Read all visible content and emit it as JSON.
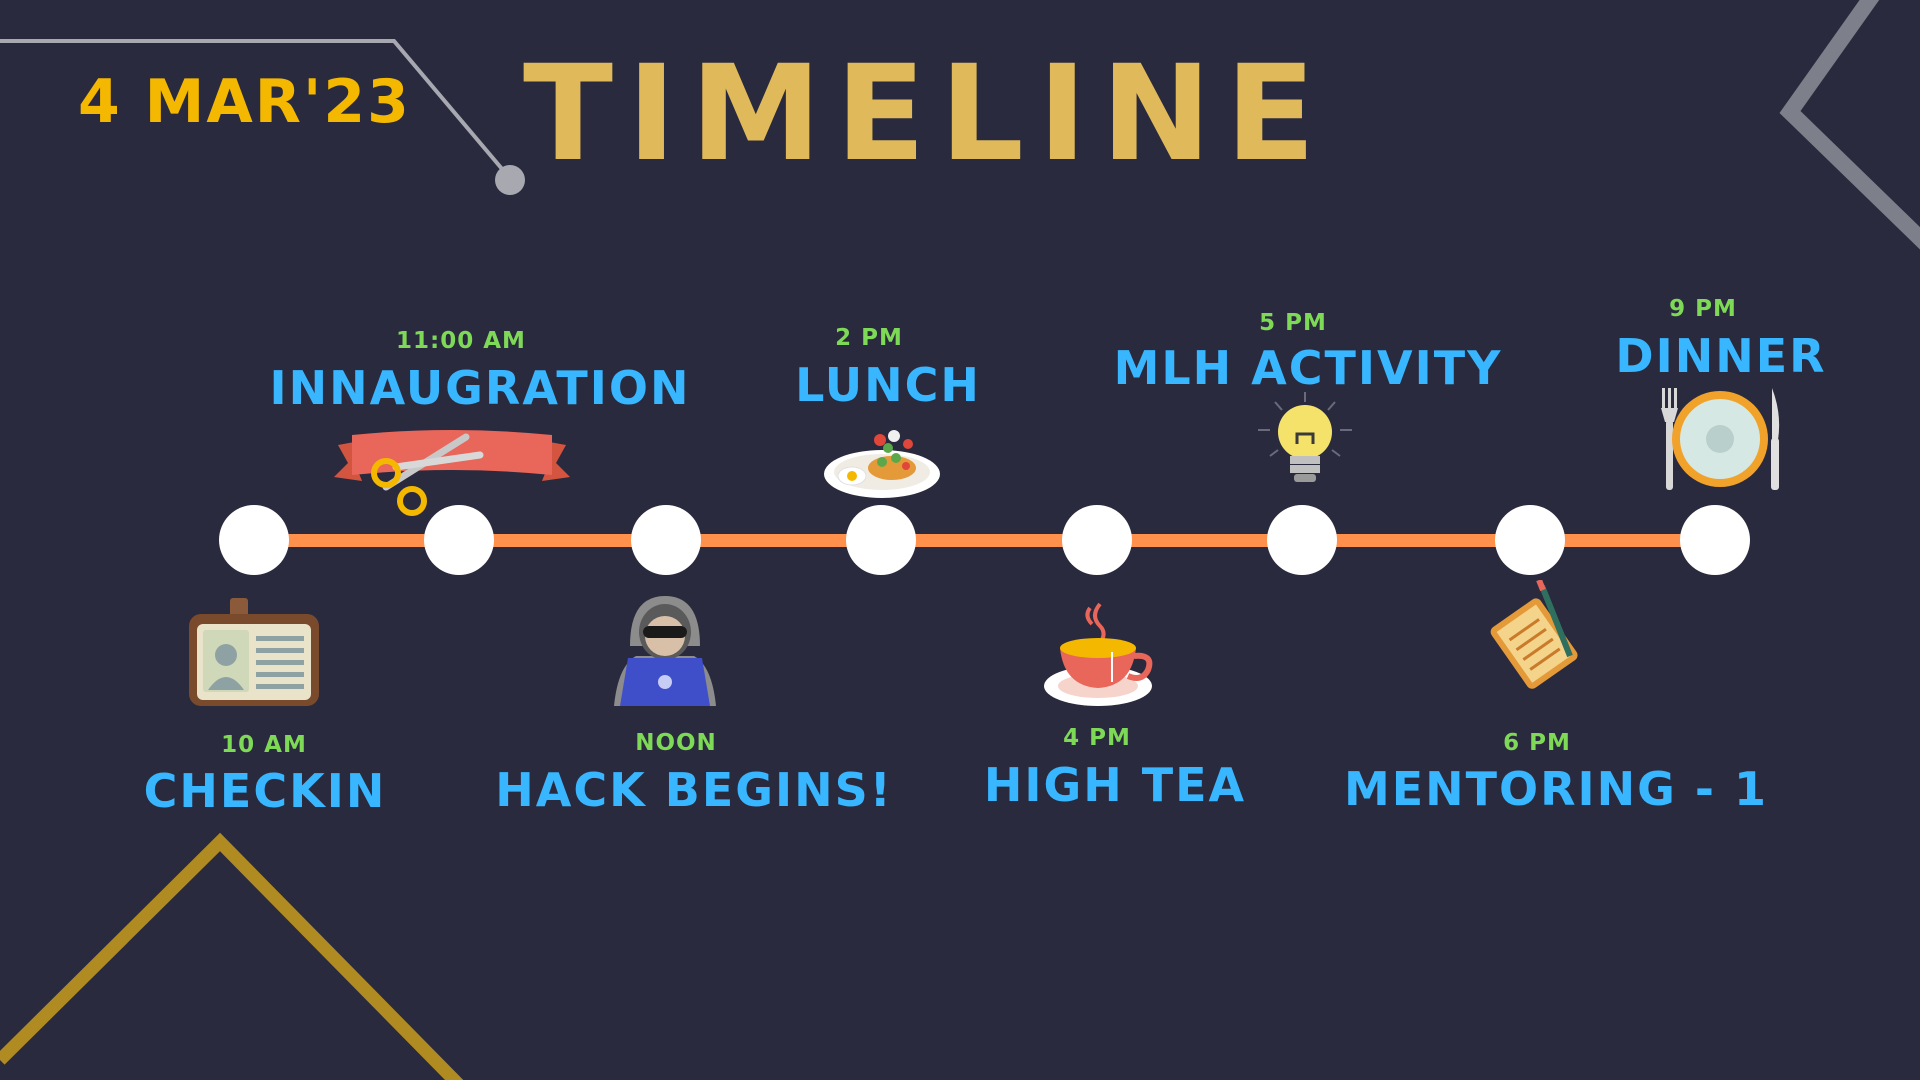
{
  "header": {
    "date": "4 MAR'23",
    "title": "TIMELINE"
  },
  "colors": {
    "background": "#2a2a3e",
    "title": "#e0b95a",
    "date": "#f5b800",
    "time": "#7ed957",
    "label": "#38b6ff",
    "line": "#ff914d",
    "node": "#ffffff"
  },
  "events": [
    {
      "time": "10 AM",
      "label": "CHECKIN",
      "icon": "id-badge-icon"
    },
    {
      "time": "11:00 AM",
      "label": "INNAUGRATION",
      "icon": "ribbon-scissors-icon"
    },
    {
      "time": "NOON",
      "label": "HACK BEGINS!",
      "icon": "hacker-laptop-icon"
    },
    {
      "time": "2 PM",
      "label": "LUNCH",
      "icon": "food-plate-icon"
    },
    {
      "time": "4 PM",
      "label": "HIGH TEA",
      "icon": "teacup-icon"
    },
    {
      "time": "5 PM",
      "label": "MLH ACTIVITY",
      "icon": "lightbulb-icon"
    },
    {
      "time": "6 PM",
      "label": "MENTORING - 1",
      "icon": "notepad-pencil-icon"
    },
    {
      "time": "9 PM",
      "label": "DINNER",
      "icon": "plate-cutlery-icon"
    }
  ]
}
